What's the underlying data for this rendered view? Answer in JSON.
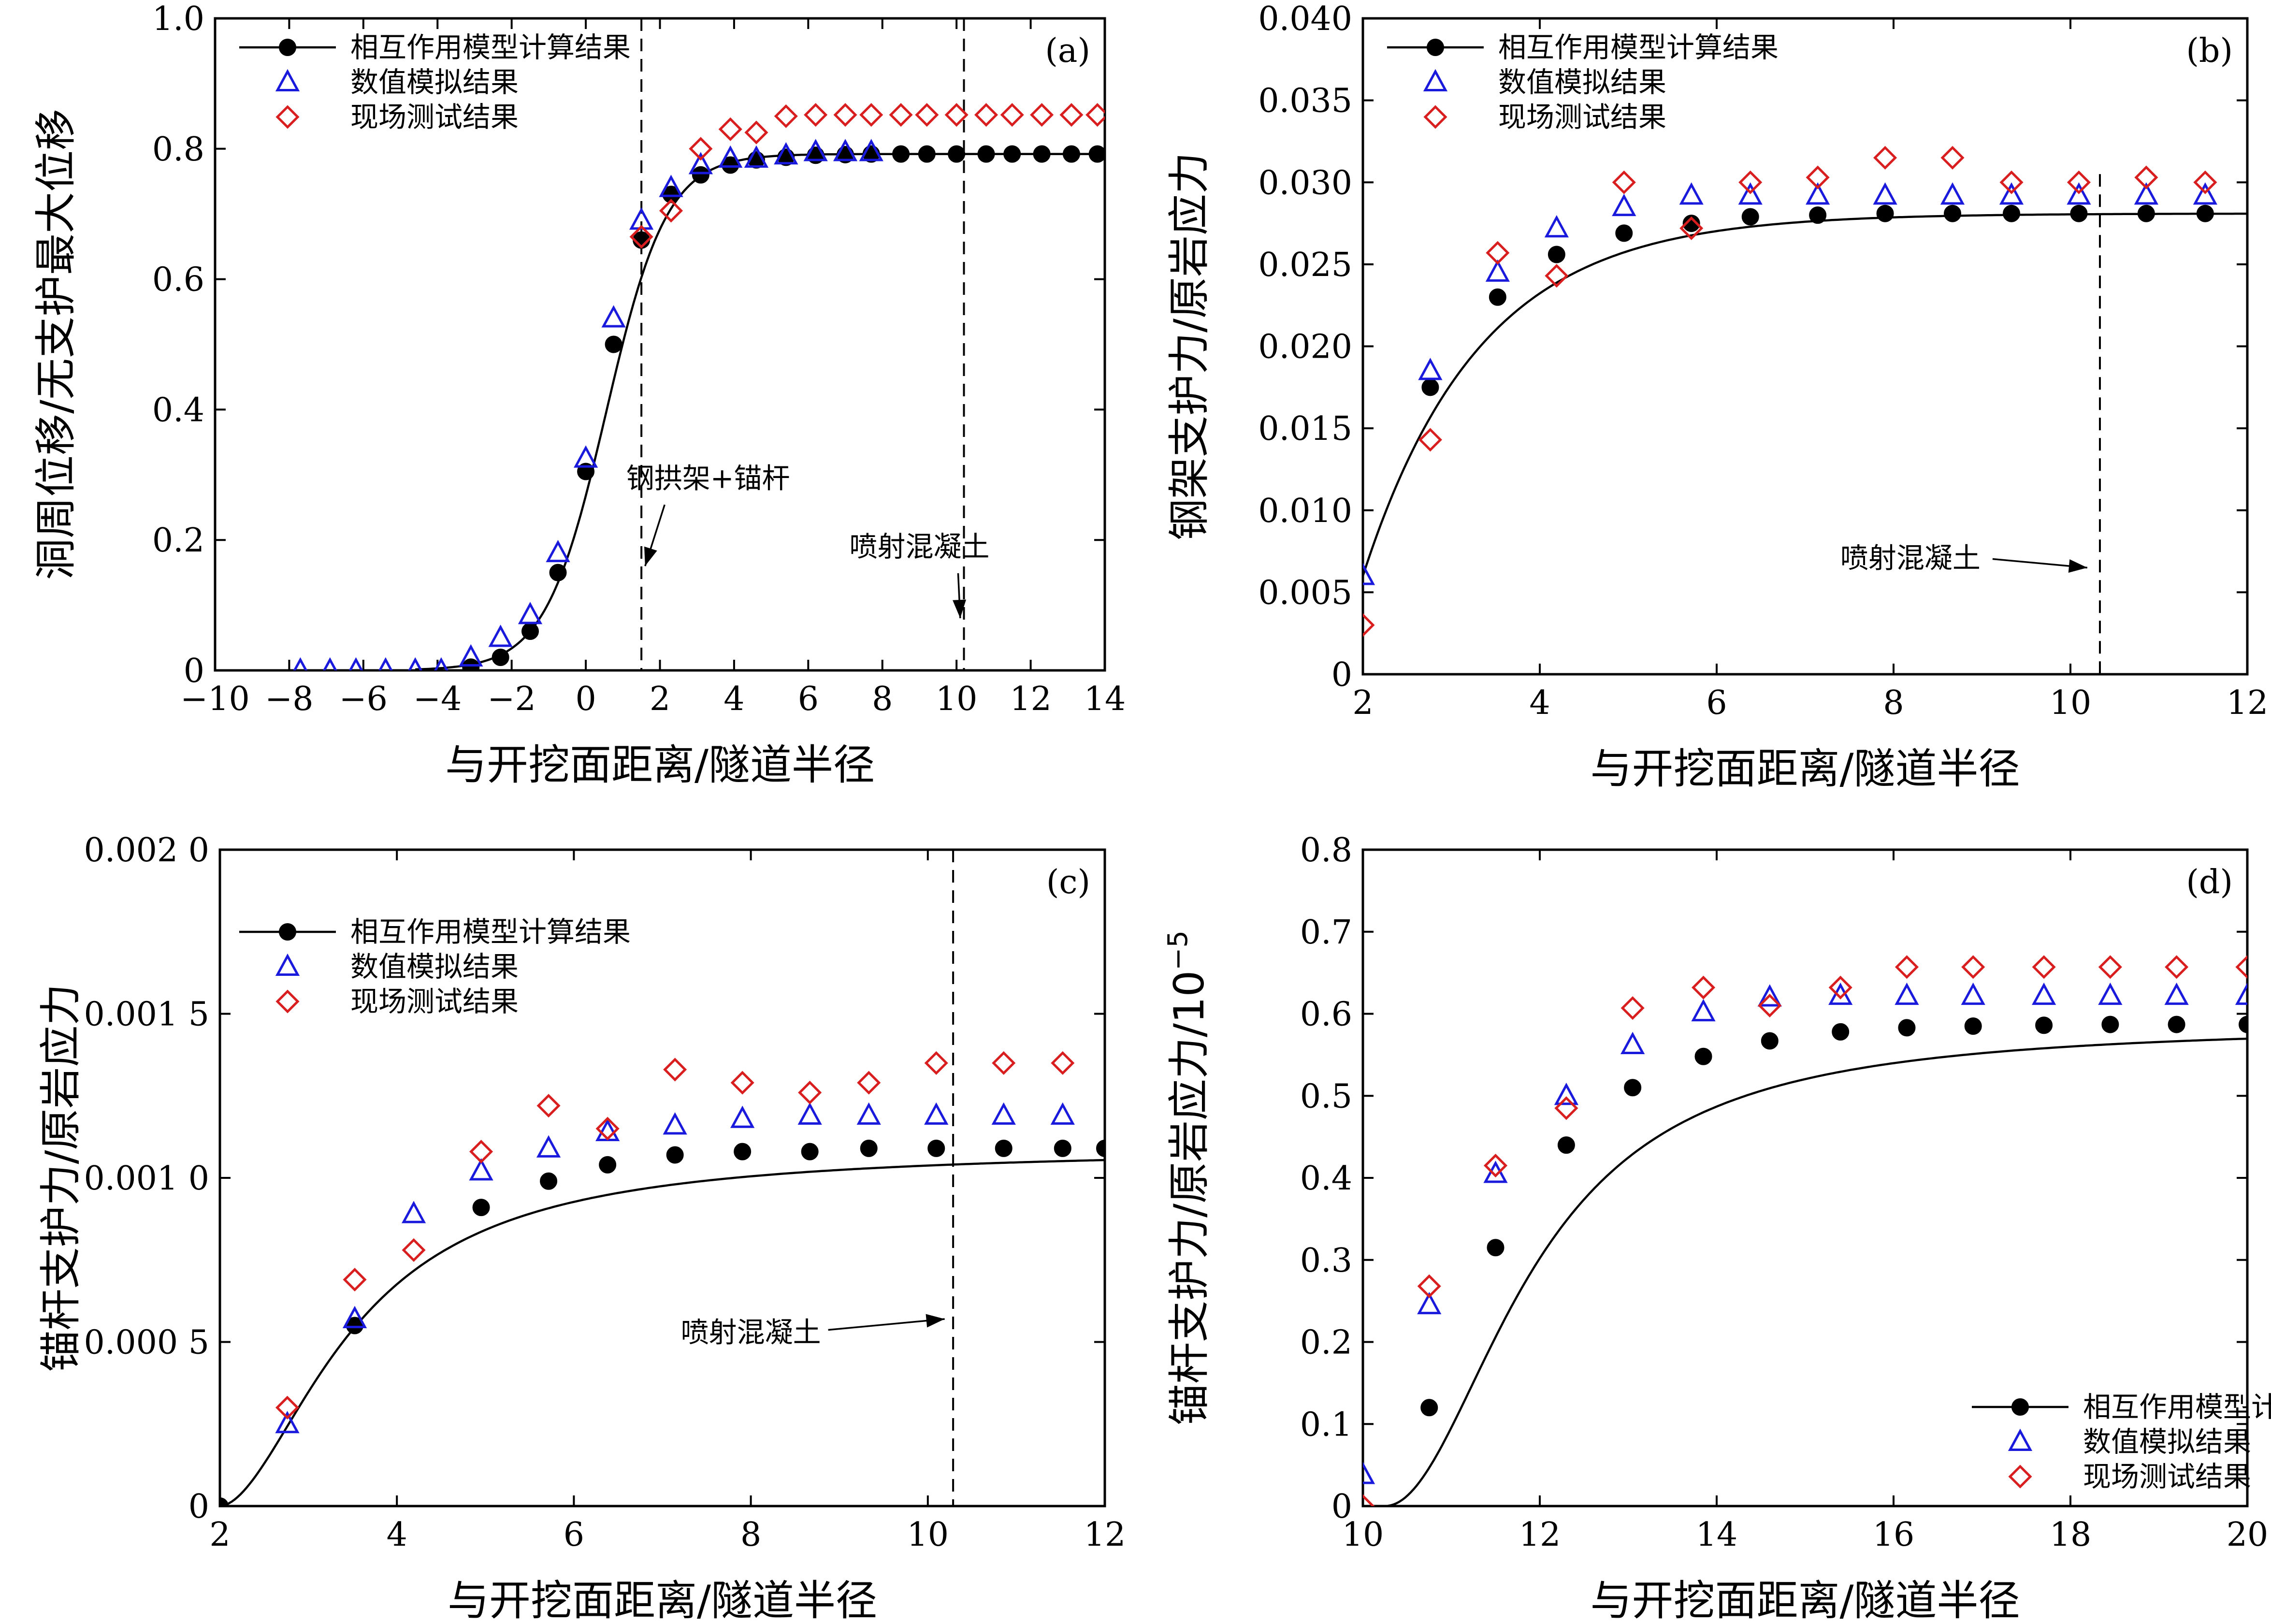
{
  "figure": {
    "xlabel_common": "与开挖面距离/隧道半径"
  },
  "legend_labels": [
    "相互作用模型计算结果",
    "数值模拟结果",
    "现场测试结果"
  ],
  "colors": {
    "calc": "#000000",
    "sim": "#1a1adc",
    "field": "#d81e1e"
  },
  "chart_data": [
    {
      "panel": "(a)",
      "type": "scatter",
      "xlabel": "与开挖面距离/隧道半径",
      "ylabel": "洞周位移/无支护最大位移",
      "xlim": [
        -10,
        14
      ],
      "ylim": [
        0,
        1.0
      ],
      "xticks": [
        "−10",
        "−8",
        "−6",
        "−4",
        "−2",
        "0",
        "2",
        "4",
        "6",
        "8",
        "10",
        "12",
        "14"
      ],
      "yticks": [
        "0",
        "0.2",
        "0.4",
        "0.6",
        "0.8",
        "1.0"
      ],
      "legend_position": "top-left",
      "series": [
        {
          "name": "相互作用模型计算结果",
          "marker": "circle-line",
          "x": [
            -3.1,
            -2.3,
            -1.5,
            -0.75,
            0,
            0.75,
            1.5,
            2.3,
            3.1,
            3.9,
            4.6,
            5.4,
            6.2,
            7.0,
            7.7,
            8.5,
            9.2,
            10.0,
            10.8,
            11.5,
            12.3,
            13.1,
            13.8
          ],
          "y": [
            0.005,
            0.02,
            0.06,
            0.15,
            0.305,
            0.5,
            0.66,
            0.73,
            0.76,
            0.775,
            0.783,
            0.787,
            0.79,
            0.791,
            0.792,
            0.792,
            0.792,
            0.792,
            0.792,
            0.792,
            0.792,
            0.792,
            0.792
          ]
        },
        {
          "name": "数值模拟结果",
          "marker": "triangle",
          "x": [
            -7.7,
            -6.9,
            -6.2,
            -5.4,
            -4.6,
            -3.9,
            -3.1,
            -2.3,
            -1.5,
            -0.75,
            0,
            0.75,
            1.5,
            2.3,
            3.1,
            3.9,
            4.6,
            5.4,
            6.2,
            7.0,
            7.7
          ],
          "y": [
            0.0,
            0.0,
            0.0,
            0.0,
            0.0,
            0.0,
            0.02,
            0.05,
            0.085,
            0.18,
            0.325,
            0.54,
            0.69,
            0.74,
            0.775,
            0.785,
            0.785,
            0.79,
            0.795,
            0.795,
            0.795
          ]
        },
        {
          "name": "现场测试结果",
          "marker": "diamond",
          "x": [
            1.5,
            2.3,
            3.1,
            3.9,
            4.6,
            5.4,
            6.2,
            7.0,
            7.7,
            8.5,
            9.2,
            10.0,
            10.8,
            11.5,
            12.3,
            13.1,
            13.8
          ],
          "y": [
            0.665,
            0.705,
            0.8,
            0.83,
            0.825,
            0.85,
            0.852,
            0.852,
            0.852,
            0.852,
            0.852,
            0.852,
            0.852,
            0.852,
            0.852,
            0.852,
            0.852
          ]
        }
      ],
      "curve": {
        "type": "sigmoid",
        "center": 0.55,
        "scale": 0.82,
        "min": 0.0,
        "max": 0.792,
        "xrange": [
          -4.6,
          14
        ]
      },
      "vlines": [
        1.5,
        10.2
      ],
      "annotations": [
        {
          "text": "钢拱架+锚杆",
          "x": 3.3,
          "y": 0.28,
          "arrow_to": [
            1.6,
            0.16
          ]
        },
        {
          "text": "喷射混凝土",
          "x": 9.0,
          "y": 0.175,
          "arrow_to": [
            10.1,
            0.08
          ]
        }
      ]
    },
    {
      "panel": "(b)",
      "type": "scatter",
      "xlabel": "与开挖面距离/隧道半径",
      "ylabel": "钢架支护力/原岩应力",
      "xlim": [
        1.5,
        12
      ],
      "ylim": [
        0,
        0.04
      ],
      "xticks": [
        "2",
        "4",
        "6",
        "8",
        "10",
        "12"
      ],
      "yticks": [
        "0",
        "0.005",
        "0.010",
        "0.015",
        "0.020",
        "0.025",
        "0.030",
        "0.035",
        "0.040"
      ],
      "legend_position": "top-left",
      "series": [
        {
          "name": "相互作用模型计算结果",
          "marker": "circle-line",
          "x": [
            2.3,
            3.1,
            3.8,
            4.6,
            5.4,
            6.1,
            6.9,
            7.7,
            8.5,
            9.2,
            10.0,
            10.8,
            11.5
          ],
          "y": [
            0.0175,
            0.023,
            0.0256,
            0.0269,
            0.0275,
            0.0279,
            0.028,
            0.0281,
            0.0281,
            0.0281,
            0.0281,
            0.0281,
            0.0281
          ]
        },
        {
          "name": "数值模拟结果",
          "marker": "triangle",
          "x": [
            1.5,
            2.3,
            3.1,
            3.8,
            4.6,
            5.4,
            6.1,
            6.9,
            7.7,
            8.5,
            9.2,
            10.0,
            10.8,
            11.5
          ],
          "y": [
            0.006,
            0.0185,
            0.0245,
            0.0272,
            0.0285,
            0.0292,
            0.0292,
            0.0292,
            0.0292,
            0.0292,
            0.0292,
            0.0292,
            0.0292,
            0.0292
          ]
        },
        {
          "name": "现场测试结果",
          "marker": "diamond",
          "x": [
            1.5,
            2.3,
            3.1,
            3.8,
            4.6,
            5.4,
            6.1,
            6.9,
            7.7,
            8.5,
            9.2,
            10.0,
            10.8,
            11.5
          ],
          "y": [
            0.003,
            0.0143,
            0.0257,
            0.0243,
            0.03,
            0.0272,
            0.03,
            0.0303,
            0.0315,
            0.0315,
            0.03,
            0.03,
            0.0303,
            0.03
          ]
        }
      ],
      "curve": {
        "type": "exp",
        "x0": 1.5,
        "y0": 0.006,
        "yinf": 0.0281,
        "k": 0.72,
        "xrange": [
          1.5,
          12
        ]
      },
      "vlines_partial": [
        {
          "x": 10.25,
          "y_top": 0.0305
        }
      ],
      "annotations": [
        {
          "text": "喷射混凝土",
          "x": 8.0,
          "y": 0.0065,
          "arrow_to": [
            10.1,
            0.0065
          ]
        }
      ]
    },
    {
      "panel": "(c)",
      "type": "scatter",
      "xlabel": "与开挖面距离/隧道半径",
      "ylabel": "锚杆支护力/原岩应力",
      "xlim": [
        1.5,
        12
      ],
      "ylim": [
        0,
        0.002
      ],
      "xticks": [
        "2",
        "4",
        "6",
        "8",
        "10",
        "12"
      ],
      "yticks": [
        "0",
        "0.000 5",
        "0.001 0",
        "0.001 5",
        "0.002 0"
      ],
      "legend_position": "top-left",
      "series": [
        {
          "name": "相互作用模型计算结果",
          "marker": "circle-line",
          "x": [
            1.5,
            3.1,
            4.6,
            5.4,
            6.1,
            6.9,
            7.7,
            8.5,
            9.2,
            10.0,
            10.8,
            11.5,
            12.0
          ],
          "y": [
            0.0,
            0.00055,
            0.00091,
            0.00099,
            0.00104,
            0.00107,
            0.00108,
            0.00108,
            0.00109,
            0.00109,
            0.00109,
            0.00109,
            0.00109
          ]
        },
        {
          "name": "数值模拟结果",
          "marker": "triangle",
          "x": [
            2.3,
            3.1,
            3.8,
            4.6,
            5.4,
            6.1,
            6.9,
            7.7,
            8.5,
            9.2,
            10.0,
            10.8,
            11.5
          ],
          "y": [
            0.00025,
            0.00057,
            0.00089,
            0.00102,
            0.00109,
            0.00114,
            0.00116,
            0.00118,
            0.00119,
            0.00119,
            0.00119,
            0.00119,
            0.00119
          ]
        },
        {
          "name": "现场测试结果",
          "marker": "diamond",
          "x": [
            2.3,
            3.1,
            3.8,
            4.6,
            5.4,
            6.1,
            6.9,
            7.7,
            8.5,
            9.2,
            10.0,
            10.8,
            11.5
          ],
          "y": [
            0.0003,
            0.00069,
            0.00078,
            0.00108,
            0.00122,
            0.00115,
            0.00133,
            0.00129,
            0.00126,
            0.00129,
            0.00135,
            0.00135,
            0.00135
          ]
        }
      ],
      "curve": {
        "type": "hill",
        "x0": 1.5,
        "yinf": 0.00109,
        "c": 1.6,
        "n": 1.8,
        "xrange": [
          1.5,
          12
        ]
      },
      "vlines": [
        10.2
      ],
      "annotations": [
        {
          "text": "喷射混凝土",
          "x": 7.8,
          "y": 0.0005,
          "arrow_to": [
            10.1,
            0.00057
          ]
        }
      ]
    },
    {
      "panel": "(d)",
      "type": "scatter",
      "xlabel": "与开挖面距离/隧道半径",
      "ylabel": "锚杆支护力/原岩应力/10",
      "ylabel_exponent": "−5",
      "xlim": [
        10,
        20
      ],
      "ylim": [
        0,
        0.8
      ],
      "xticks": [
        "10",
        "12",
        "14",
        "16",
        "18",
        "20"
      ],
      "yticks": [
        "0",
        "0.1",
        "0.2",
        "0.3",
        "0.4",
        "0.5",
        "0.6",
        "0.7",
        "0.8"
      ],
      "legend_position": "bottom-right",
      "series": [
        {
          "name": "相互作用模型计算结果",
          "marker": "circle-line",
          "x": [
            10.75,
            11.5,
            12.3,
            13.05,
            13.85,
            14.6,
            15.4,
            16.15,
            16.9,
            17.7,
            18.45,
            19.2,
            20.0
          ],
          "y": [
            0.12,
            0.315,
            0.44,
            0.51,
            0.548,
            0.567,
            0.578,
            0.583,
            0.585,
            0.586,
            0.587,
            0.587,
            0.587
          ]
        },
        {
          "name": "数值模拟结果",
          "marker": "triangle",
          "x": [
            10.0,
            10.75,
            11.5,
            12.3,
            13.05,
            13.85,
            14.6,
            15.4,
            16.15,
            16.9,
            17.7,
            18.45,
            19.2,
            20.0
          ],
          "y": [
            0.038,
            0.245,
            0.405,
            0.5,
            0.562,
            0.602,
            0.62,
            0.622,
            0.622,
            0.622,
            0.622,
            0.622,
            0.622,
            0.622
          ]
        },
        {
          "name": "现场测试结果",
          "marker": "diamond",
          "x": [
            10.0,
            10.75,
            11.5,
            12.3,
            13.05,
            13.85,
            14.6,
            15.4,
            16.15,
            16.9,
            17.7,
            18.45,
            19.2,
            20.0
          ],
          "y": [
            0.0,
            0.268,
            0.415,
            0.485,
            0.607,
            0.632,
            0.61,
            0.632,
            0.657,
            0.657,
            0.657,
            0.657,
            0.657,
            0.657
          ]
        }
      ],
      "curve": {
        "type": "hill",
        "x0": 10.25,
        "yinf": 0.587,
        "c": 1.7,
        "n": 2.0,
        "xrange": [
          10.25,
          20
        ]
      }
    }
  ]
}
